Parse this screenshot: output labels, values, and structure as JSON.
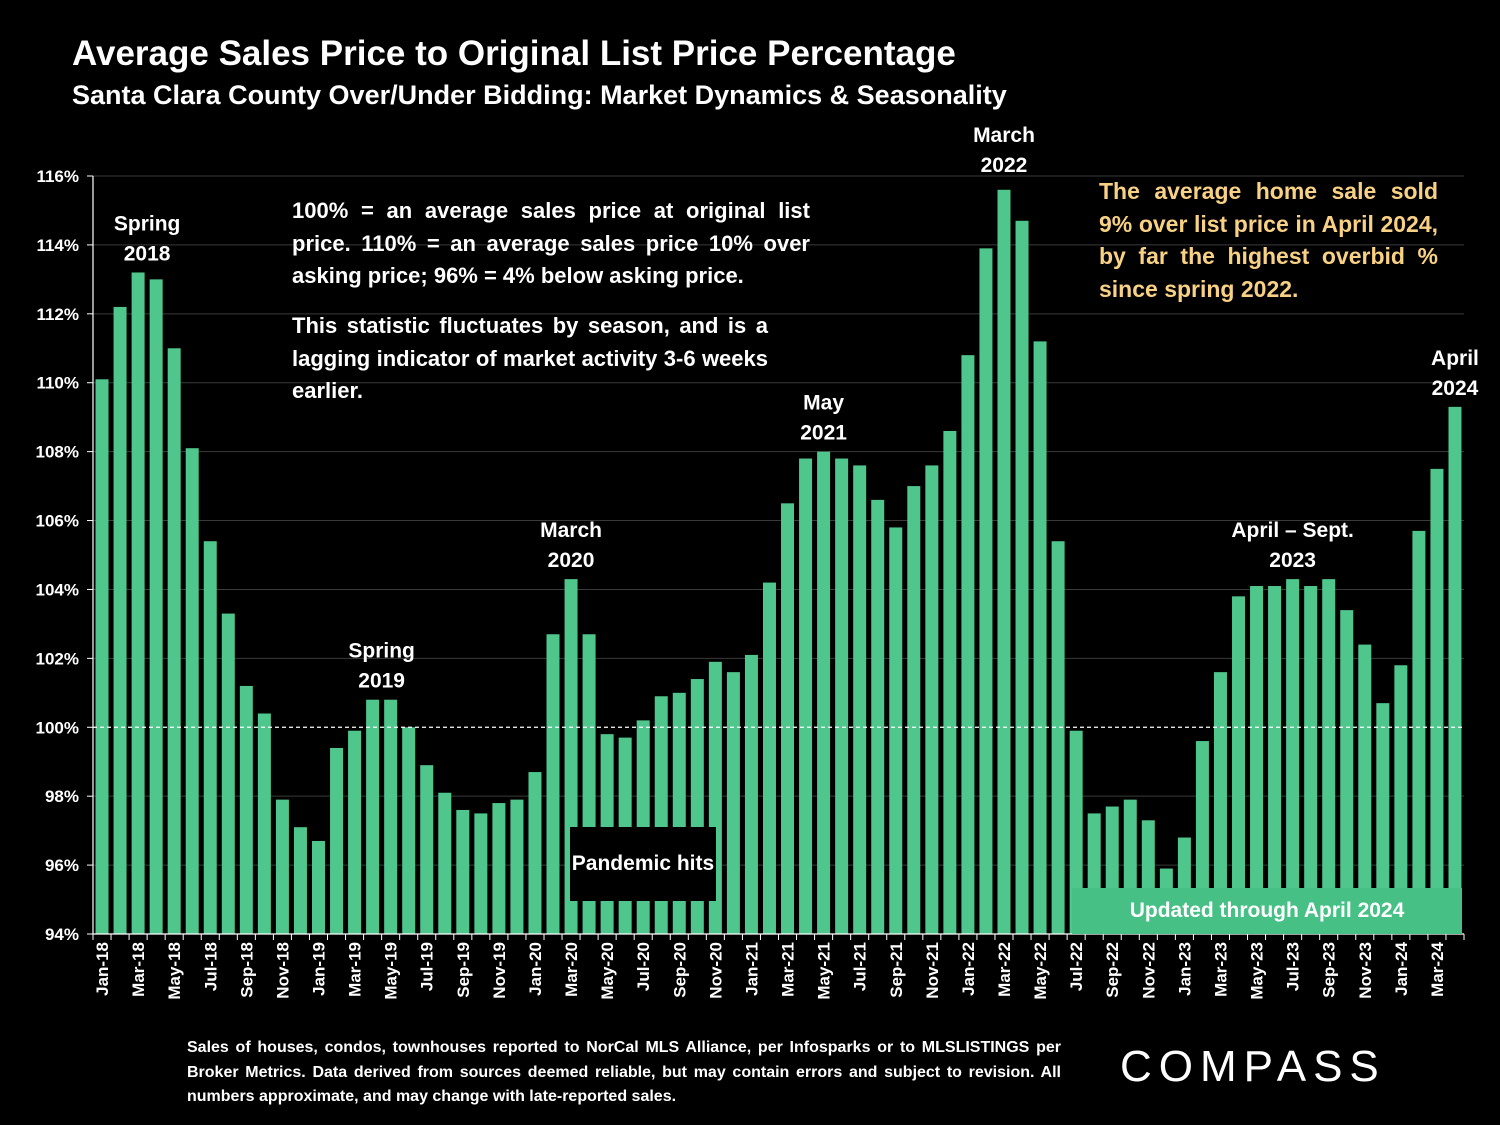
{
  "title": "Average Sales Price to Original List Price Percentage",
  "subtitle": "Santa Clara County Over/Under Bidding: Market Dynamics & Seasonality",
  "notes": {
    "definition": "100% = an average sales price at original list price. 110% = an average sales price 10% over asking price; 96% = 4% below asking price.",
    "lagging": "This statistic fluctuates by season, and is a lagging indicator of market activity 3-6 weeks earlier."
  },
  "callout": "The average home sale sold 9% over list price in April 2024, by far the highest overbid % since spring 2022.",
  "updated_label": "Updated through April 2024",
  "pandemic_label": "Pandemic hits",
  "footnote": "Sales of houses, condos, townhouses reported to NorCal MLS Alliance, per Infosparks or to MLSLISTINGS per Broker Metrics. Data derived from sources deemed reliable, but may contain errors and subject to revision. All numbers approximate, and may change with late-reported sales.",
  "logo_text": "COMPASS",
  "colors": {
    "bar": "#4fc68c",
    "background": "#000000",
    "callout": "#f9d185",
    "updated_box": "#47c085",
    "grid": "#3a3a3a",
    "reference_line": "#ffffff"
  },
  "chart_data": {
    "type": "bar",
    "title": "Average Sales Price to Original List Price Percentage",
    "subtitle": "Santa Clara County Over/Under Bidding: Market Dynamics & Seasonality",
    "ylim": [
      94,
      116
    ],
    "y_ticks": [
      "94%",
      "96%",
      "98%",
      "100%",
      "102%",
      "104%",
      "106%",
      "108%",
      "110%",
      "112%",
      "114%",
      "116%"
    ],
    "reference_line": 100,
    "grid": true,
    "categories": [
      "Jan-18",
      "Feb-18",
      "Mar-18",
      "Apr-18",
      "May-18",
      "Jun-18",
      "Jul-18",
      "Aug-18",
      "Sep-18",
      "Oct-18",
      "Nov-18",
      "Dec-18",
      "Jan-19",
      "Feb-19",
      "Mar-19",
      "Apr-19",
      "May-19",
      "Jun-19",
      "Jul-19",
      "Aug-19",
      "Sep-19",
      "Oct-19",
      "Nov-19",
      "Dec-19",
      "Jan-20",
      "Feb-20",
      "Mar-20",
      "Apr-20",
      "May-20",
      "Jun-20",
      "Jul-20",
      "Aug-20",
      "Sep-20",
      "Oct-20",
      "Nov-20",
      "Dec-20",
      "Jan-21",
      "Feb-21",
      "Mar-21",
      "Apr-21",
      "May-21",
      "Jun-21",
      "Jul-21",
      "Aug-21",
      "Sep-21",
      "Oct-21",
      "Nov-21",
      "Dec-21",
      "Jan-22",
      "Feb-22",
      "Mar-22",
      "Apr-22",
      "May-22",
      "Jun-22",
      "Jul-22",
      "Aug-22",
      "Sep-22",
      "Oct-22",
      "Nov-22",
      "Dec-22",
      "Jan-23",
      "Feb-23",
      "Mar-23",
      "Apr-23",
      "May-23",
      "Jun-23",
      "Jul-23",
      "Aug-23",
      "Sep-23",
      "Oct-23",
      "Nov-23",
      "Dec-23",
      "Jan-24",
      "Feb-24",
      "Mar-24",
      "Apr-24"
    ],
    "x_tick_labels": [
      "Jan-18",
      "Mar-18",
      "May-18",
      "Jul-18",
      "Sep-18",
      "Nov-18",
      "Jan-19",
      "Mar-19",
      "May-19",
      "Jul-19",
      "Sep-19",
      "Nov-19",
      "Jan-20",
      "Mar-20",
      "May-20",
      "Jul-20",
      "Sep-20",
      "Nov-20",
      "Jan-21",
      "Mar-21",
      "May-21",
      "Jul-21",
      "Sep-21",
      "Nov-21",
      "Jan-22",
      "Mar-22",
      "May-22",
      "Jul-22",
      "Sep-22",
      "Nov-22",
      "Jan-23",
      "Mar-23",
      "May-23",
      "Jul-23",
      "Sep-23",
      "Nov-23",
      "Jan-24",
      "Mar-24"
    ],
    "values": [
      110.1,
      112.2,
      113.2,
      113.0,
      111.0,
      108.1,
      105.4,
      103.3,
      101.2,
      100.4,
      97.9,
      97.1,
      96.7,
      99.4,
      99.9,
      100.8,
      100.8,
      100.0,
      98.9,
      98.1,
      97.6,
      97.5,
      97.8,
      97.9,
      98.7,
      102.7,
      104.3,
      102.7,
      99.8,
      99.7,
      100.2,
      100.9,
      101.0,
      101.4,
      101.9,
      101.6,
      102.1,
      104.2,
      106.5,
      107.8,
      108.0,
      107.8,
      107.6,
      106.6,
      105.8,
      107.0,
      107.6,
      108.6,
      110.8,
      113.9,
      115.6,
      114.7,
      111.2,
      105.4,
      99.9,
      97.5,
      97.7,
      97.9,
      97.3,
      95.9,
      96.8,
      99.6,
      101.6,
      103.8,
      104.1,
      104.1,
      104.3,
      104.1,
      104.3,
      103.4,
      102.4,
      100.7,
      101.8,
      105.7,
      107.5,
      109.3
    ],
    "annotations": [
      {
        "text_lines": [
          "Spring",
          "2018"
        ],
        "index": 2.5
      },
      {
        "text_lines": [
          "Spring",
          "2019"
        ],
        "index": 15.5
      },
      {
        "text_lines": [
          "March",
          "2020"
        ],
        "index": 26
      },
      {
        "text_lines": [
          "May",
          "2021"
        ],
        "index": 40
      },
      {
        "text_lines": [
          "March",
          "2022"
        ],
        "index": 50
      },
      {
        "text_lines": [
          "April – Sept.",
          "2023"
        ],
        "index": 66
      },
      {
        "text_lines": [
          "April",
          "2024"
        ],
        "index": 75
      }
    ]
  }
}
